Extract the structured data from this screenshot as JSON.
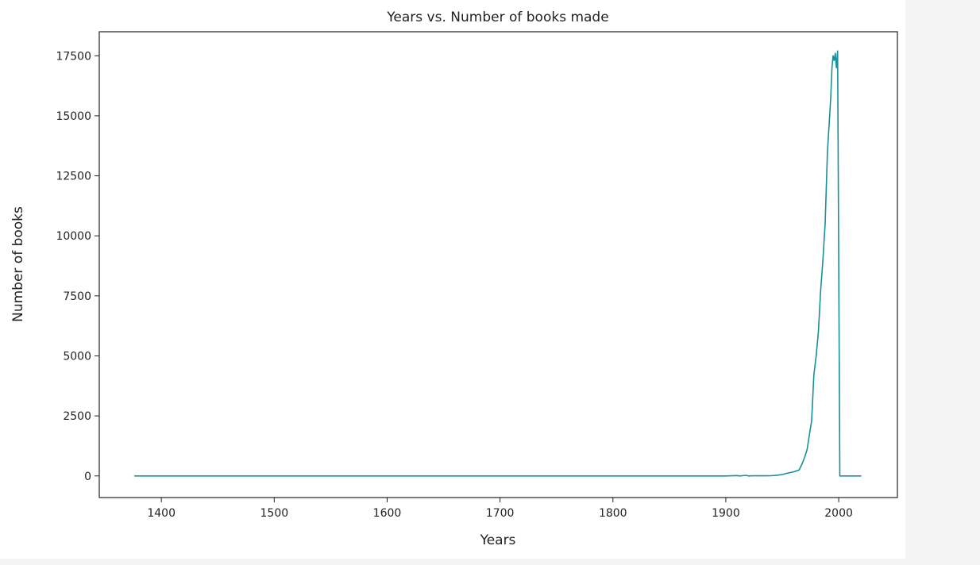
{
  "chart_data": {
    "type": "line",
    "title": "Years vs. Number of books made",
    "xlabel": "Years",
    "ylabel": "Number of books",
    "xlim": [
      1345,
      2052
    ],
    "ylim": [
      -900,
      18500
    ],
    "xticks": [
      1400,
      1500,
      1600,
      1700,
      1800,
      1900,
      2000
    ],
    "yticks": [
      0,
      2500,
      5000,
      7500,
      10000,
      12500,
      15000,
      17500
    ],
    "grid": false,
    "legend": "none",
    "series": [
      {
        "color": "#1a8f96",
        "x": [
          1376,
          1900,
          1910,
          1912,
          1918,
          1920,
          1925,
          1935,
          1940,
          1945,
          1950,
          1955,
          1960,
          1965,
          1968,
          1970,
          1972,
          1974,
          1976,
          1978,
          1980,
          1982,
          1984,
          1986,
          1988,
          1990,
          1992,
          1993,
          1994,
          1995,
          1996,
          1997,
          1998,
          1999,
          2000,
          2001,
          2003,
          2020
        ],
        "y": [
          0,
          0,
          15,
          0,
          25,
          0,
          10,
          5,
          10,
          30,
          60,
          120,
          170,
          250,
          550,
          800,
          1100,
          1700,
          2300,
          4200,
          5000,
          6000,
          7700,
          9000,
          10500,
          13500,
          15000,
          15800,
          17000,
          17500,
          17300,
          17600,
          17000,
          17700,
          9000,
          0,
          0,
          0
        ]
      }
    ]
  }
}
